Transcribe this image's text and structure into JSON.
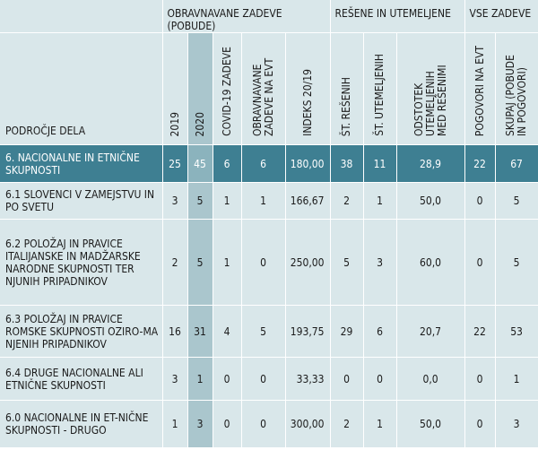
{
  "header": {
    "group_obravnavane": "OBRAVNAVANE ZADEVE (POBUDE)",
    "group_resene": "REŠENE IN UTEMELJENE",
    "group_vse": "VSE ZADEVE",
    "label_col": "PODROČJE DELA",
    "columns": [
      "2019",
      "2020",
      "COVID-19 ZADEVE",
      "OBRAVNAVANE ZADEVE NA EVT",
      "INDEKS 20/19",
      "ŠT. REŠENIH",
      "ŠT. UTEMELJENIH",
      "ODSTOTEK UTEMELJENIH MED REŠENIMI",
      "POGOVORI NA EVT",
      "SKUPAJ (POBUDE IN POGOVORI)"
    ]
  },
  "rows": [
    {
      "label": "6. NACIONALNE IN ETNIČNE SKUPNOSTI",
      "y2019": "25",
      "y2020": "45",
      "covid": "6",
      "evt": "6",
      "index": "180,00",
      "resenih": "38",
      "utemeljenih": "11",
      "odstotek": "28,9",
      "pogovori": "22",
      "skupaj": "67"
    },
    {
      "label": "6.1 SLOVENCI V ZAMEJSTVU IN PO SVETU",
      "y2019": "3",
      "y2020": "5",
      "covid": "1",
      "evt": "1",
      "index": "166,67",
      "resenih": "2",
      "utemeljenih": "1",
      "odstotek": "50,0",
      "pogovori": "0",
      "skupaj": "5"
    },
    {
      "label": "6.2 POLOŽAJ IN PRAVICE ITALIJANSKE IN MADŽARSKE NARODNE SKUPNOSTI TER NJUNIH PRIPADNIKOV",
      "y2019": "2",
      "y2020": "5",
      "covid": "1",
      "evt": "0",
      "index": "250,00",
      "resenih": "5",
      "utemeljenih": "3",
      "odstotek": "60,0",
      "pogovori": "0",
      "skupaj": "5"
    },
    {
      "label": "6.3 POLOŽAJ IN PRAVICE ROMSKE SKUPNOSTI OZIRO-MA NJENIH PRIPADNIKOV",
      "y2019": "16",
      "y2020": "31",
      "covid": "4",
      "evt": "5",
      "index": "193,75",
      "resenih": "29",
      "utemeljenih": "6",
      "odstotek": "20,7",
      "pogovori": "22",
      "skupaj": "53"
    },
    {
      "label": "6.4 DRUGE NACIONALNE ALI ETNIČNE SKUPNOSTI",
      "y2019": "3",
      "y2020": "1",
      "covid": "0",
      "evt": "0",
      "index": "33,33",
      "resenih": "0",
      "utemeljenih": "0",
      "odstotek": "0,0",
      "pogovori": "0",
      "skupaj": "1"
    },
    {
      "label": "6.0 NACIONALNE IN ET-NIČNE SKUPNOSTI - DRUGO",
      "y2019": "1",
      "y2020": "3",
      "covid": "0",
      "evt": "0",
      "index": "300,00",
      "resenih": "2",
      "utemeljenih": "1",
      "odstotek": "50,0",
      "pogovori": "0",
      "skupaj": "3"
    }
  ]
}
